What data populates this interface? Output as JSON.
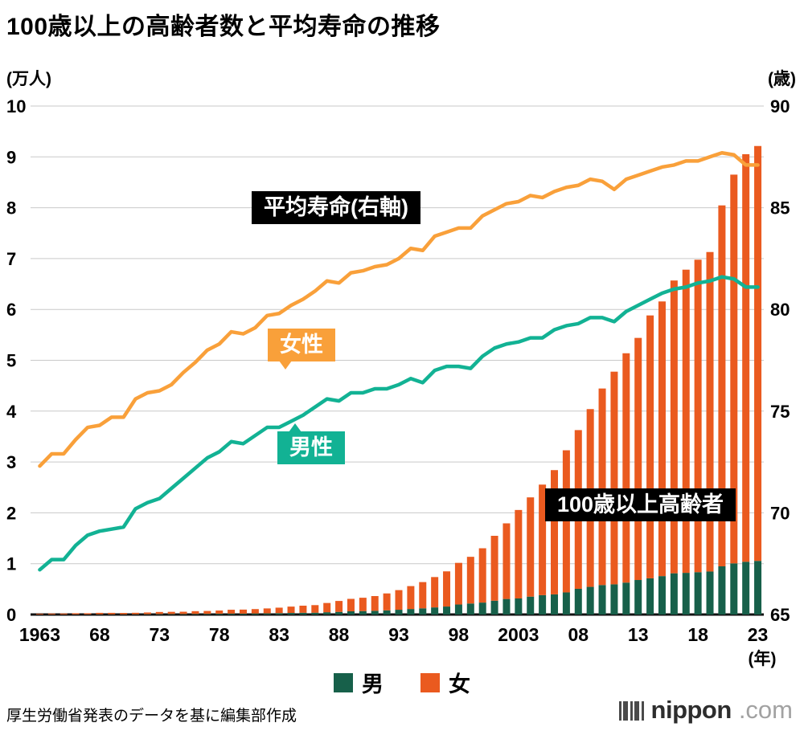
{
  "page": {
    "source_note": "厚生労働省発表のデータを基に編集部作成",
    "logo": {
      "name": "nippon",
      "tld": ".com"
    }
  },
  "chart_data": {
    "type": "bar+line",
    "title": "100歳以上の高齢者数と平均寿命の推移",
    "left_axis": {
      "unit": "(万人)",
      "range": [
        0,
        10
      ],
      "ticks": [
        0,
        1,
        2,
        3,
        4,
        5,
        6,
        7,
        8,
        9,
        10
      ]
    },
    "right_axis": {
      "unit": "(歳)",
      "range": [
        65,
        90
      ],
      "ticks": [
        65,
        70,
        75,
        80,
        85,
        90
      ]
    },
    "x_axis": {
      "unit": "(年)",
      "ticks": [
        {
          "year": 1963,
          "label": "1963"
        },
        {
          "year": 1968,
          "label": "68"
        },
        {
          "year": 1973,
          "label": "73"
        },
        {
          "year": 1978,
          "label": "78"
        },
        {
          "year": 1983,
          "label": "83"
        },
        {
          "year": 1988,
          "label": "88"
        },
        {
          "year": 1993,
          "label": "93"
        },
        {
          "year": 1998,
          "label": "98"
        },
        {
          "year": 2003,
          "label": "2003"
        },
        {
          "year": 2008,
          "label": "08"
        },
        {
          "year": 2013,
          "label": "13"
        },
        {
          "year": 2018,
          "label": "18"
        },
        {
          "year": 2023,
          "label": "23"
        }
      ]
    },
    "years": [
      1963,
      1964,
      1965,
      1966,
      1967,
      1968,
      1969,
      1970,
      1971,
      1972,
      1973,
      1974,
      1975,
      1976,
      1977,
      1978,
      1979,
      1980,
      1981,
      1982,
      1983,
      1984,
      1985,
      1986,
      1987,
      1988,
      1989,
      1990,
      1991,
      1992,
      1993,
      1994,
      1995,
      1996,
      1997,
      1998,
      1999,
      2000,
      2001,
      2002,
      2003,
      2004,
      2005,
      2006,
      2007,
      2008,
      2009,
      2010,
      2011,
      2012,
      2013,
      2014,
      2015,
      2016,
      2017,
      2018,
      2019,
      2020,
      2021,
      2022,
      2023
    ],
    "centenarians": {
      "male": [
        0.002,
        0.003,
        0.003,
        0.004,
        0.004,
        0.005,
        0.005,
        0.005,
        0.006,
        0.007,
        0.009,
        0.01,
        0.01,
        0.012,
        0.013,
        0.015,
        0.018,
        0.017,
        0.02,
        0.023,
        0.027,
        0.031,
        0.035,
        0.036,
        0.045,
        0.052,
        0.063,
        0.068,
        0.073,
        0.082,
        0.094,
        0.109,
        0.122,
        0.14,
        0.157,
        0.197,
        0.217,
        0.235,
        0.272,
        0.306,
        0.316,
        0.352,
        0.381,
        0.396,
        0.435,
        0.506,
        0.544,
        0.58,
        0.594,
        0.628,
        0.679,
        0.712,
        0.756,
        0.811,
        0.82,
        0.833,
        0.846,
        0.948,
        1.006,
        1.037,
        1.055
      ],
      "female": [
        0.013,
        0.016,
        0.017,
        0.021,
        0.021,
        0.028,
        0.028,
        0.026,
        0.028,
        0.033,
        0.041,
        0.043,
        0.045,
        0.054,
        0.057,
        0.064,
        0.076,
        0.08,
        0.087,
        0.097,
        0.108,
        0.125,
        0.139,
        0.149,
        0.182,
        0.215,
        0.245,
        0.262,
        0.29,
        0.333,
        0.386,
        0.45,
        0.516,
        0.597,
        0.692,
        0.819,
        0.918,
        1.068,
        1.276,
        1.487,
        1.74,
        1.952,
        2.174,
        2.444,
        2.795,
        3.121,
        3.496,
        3.865,
        4.182,
        4.51,
        4.761,
        5.17,
        5.401,
        5.758,
        5.962,
        6.145,
        6.283,
        7.098,
        7.645,
        8.016,
        8.159
      ]
    },
    "life_expectancy": {
      "male": [
        67.2,
        67.7,
        67.7,
        68.4,
        68.9,
        69.1,
        69.2,
        69.3,
        70.2,
        70.5,
        70.7,
        71.2,
        71.7,
        72.2,
        72.7,
        73.0,
        73.5,
        73.4,
        73.8,
        74.2,
        74.2,
        74.5,
        74.8,
        75.2,
        75.6,
        75.5,
        75.9,
        75.9,
        76.1,
        76.1,
        76.3,
        76.6,
        76.4,
        77.0,
        77.2,
        77.2,
        77.1,
        77.7,
        78.1,
        78.3,
        78.4,
        78.6,
        78.6,
        79.0,
        79.2,
        79.3,
        79.6,
        79.6,
        79.4,
        79.9,
        80.2,
        80.5,
        80.8,
        81.0,
        81.1,
        81.3,
        81.4,
        81.6,
        81.5,
        81.1,
        81.1
      ],
      "female": [
        72.3,
        72.9,
        72.9,
        73.6,
        74.2,
        74.3,
        74.7,
        74.7,
        75.6,
        75.9,
        76.0,
        76.3,
        76.9,
        77.4,
        78.0,
        78.3,
        78.9,
        78.8,
        79.1,
        79.7,
        79.8,
        80.2,
        80.5,
        80.9,
        81.4,
        81.3,
        81.8,
        81.9,
        82.1,
        82.2,
        82.5,
        83.0,
        82.9,
        83.6,
        83.8,
        84.0,
        84.0,
        84.6,
        84.9,
        85.2,
        85.3,
        85.6,
        85.5,
        85.8,
        86.0,
        86.1,
        86.4,
        86.3,
        85.9,
        86.4,
        86.6,
        86.8,
        87.0,
        87.1,
        87.3,
        87.3,
        87.5,
        87.7,
        87.6,
        87.1,
        87.1
      ]
    },
    "annotations": {
      "life_expectancy": "平均寿命(右軸)",
      "female_line": "女性",
      "male_line": "男性",
      "centenarian_bars": "100歳以上高齢者"
    },
    "legend": {
      "male": "男",
      "female": "女"
    },
    "colors": {
      "bar_male": "#17604a",
      "bar_female": "#ea5a1f",
      "line_male": "#12b294",
      "line_female": "#f9a03a",
      "annotation_bg": "#000000",
      "grid": "#c9c9c9",
      "axis": "#111111"
    },
    "layout": {
      "grid": "horizontal",
      "legend_position": "bottom-center"
    }
  }
}
